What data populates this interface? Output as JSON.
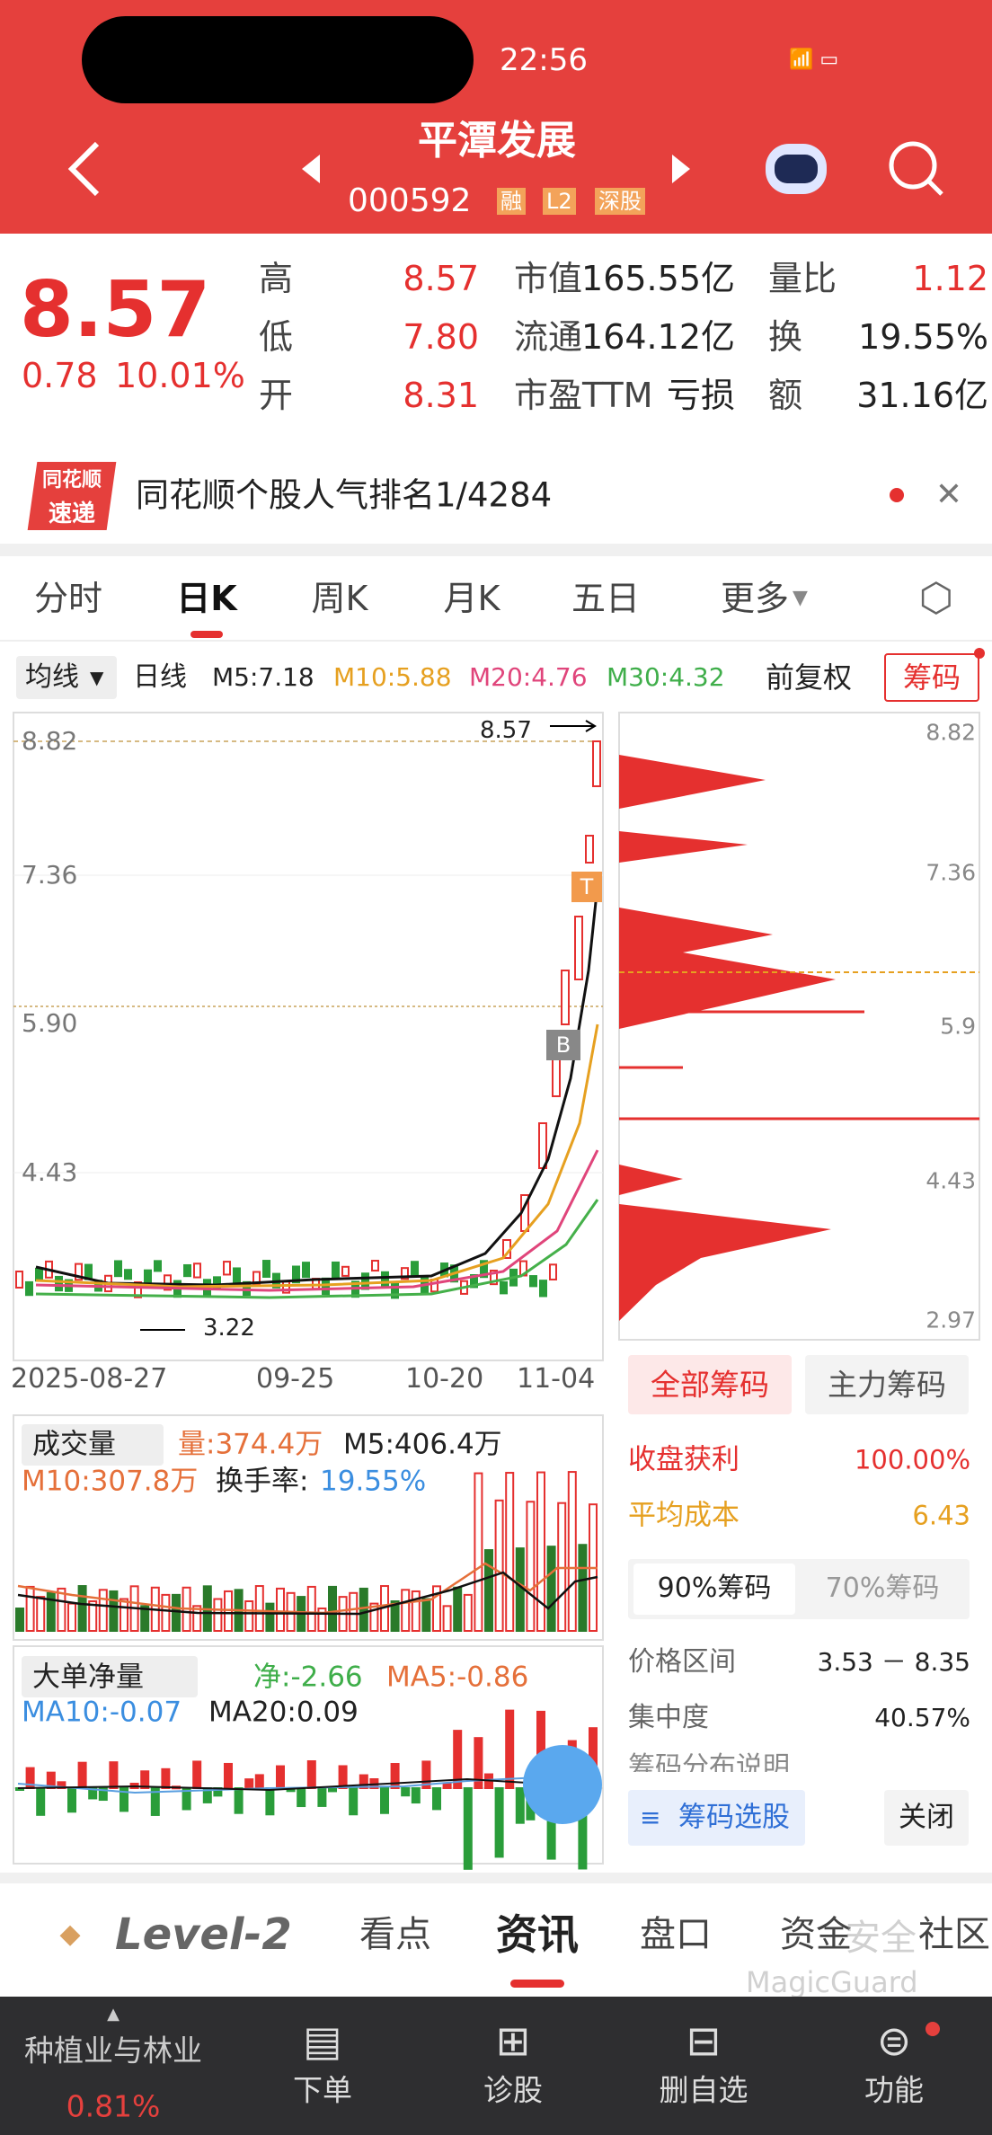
{
  "status": {
    "time": "22:56"
  },
  "header": {
    "title": "平潭发展",
    "code": "000592",
    "tags": [
      "融",
      "L2",
      "深股"
    ]
  },
  "quote": {
    "price": "8.57",
    "change": "0.78",
    "change_pct": "10.01%",
    "stats": [
      {
        "label": "高",
        "value": "8.57"
      },
      {
        "label": "低",
        "value": "7.80"
      },
      {
        "label": "开",
        "value": "8.31"
      },
      {
        "label": "市值",
        "value": "165.55亿"
      },
      {
        "label": "流通",
        "value": "164.12亿"
      },
      {
        "label": "市盈TTM",
        "value": "亏损"
      },
      {
        "label": "量比",
        "value": "1.12"
      },
      {
        "label": "换",
        "value": "19.55%"
      },
      {
        "label": "额",
        "value": "31.16亿"
      }
    ]
  },
  "banner": {
    "logo": [
      "同花顺",
      "速递"
    ],
    "text": "同花顺个股人气排名1/4284"
  },
  "tabs": [
    "分时",
    "日K",
    "周K",
    "月K",
    "五日",
    "更多"
  ],
  "indicators": {
    "ma_type": "均线",
    "period": "日线",
    "m5": "M5:7.18",
    "m10": "M10:5.88",
    "m20": "M20:4.76",
    "m30": "M30:4.32",
    "adjust": "前复权",
    "chips": "筹码"
  },
  "kchart": {
    "y_labels": [
      "8.82",
      "7.36",
      "5.90",
      "4.43"
    ],
    "high_label": "8.57",
    "low_label": "3.22",
    "x_labels": [
      "2025-08-27",
      "09-25",
      "10-20",
      "11-04"
    ],
    "markers": [
      "T",
      "B"
    ]
  },
  "chip_chart": {
    "y_labels": [
      "8.82",
      "7.36",
      "5.9",
      "4.43",
      "2.97"
    ]
  },
  "chip_panel": {
    "tabs": [
      "全部筹码",
      "主力筹码"
    ],
    "rows": [
      {
        "label": "收盘获利",
        "value": "100.00%"
      },
      {
        "label": "平均成本",
        "value": "6.43"
      }
    ],
    "subtabs": [
      "90%筹码",
      "70%筹码"
    ],
    "rows2": [
      {
        "label": "价格区间",
        "value": "3.53 － 8.35"
      },
      {
        "label": "集中度",
        "value": "40.57%"
      }
    ],
    "note": "筹码分布说明",
    "buttons": [
      "筹码选股",
      "关闭"
    ]
  },
  "volume": {
    "title": "成交量",
    "vol": "量:374.4万",
    "m5": "M5:406.4万",
    "m10": "M10:307.8万",
    "turnover_label": "换手率:",
    "turnover": "19.55%"
  },
  "big_order": {
    "title": "大单净量",
    "net": "净:-2.66",
    "ma5": "MA5:-0.86",
    "ma10": "MA10:-0.07",
    "ma20": "MA20:0.09"
  },
  "bottom_tabs": [
    "Level-2",
    "看点",
    "资讯",
    "盘口",
    "资金",
    "社区"
  ],
  "watermark": [
    "安全",
    "MagicGuard"
  ],
  "nav": {
    "sector": "种植业与林业",
    "sector_pct": "0.81%",
    "items": [
      "下单",
      "诊股",
      "删自选",
      "功能"
    ]
  }
}
